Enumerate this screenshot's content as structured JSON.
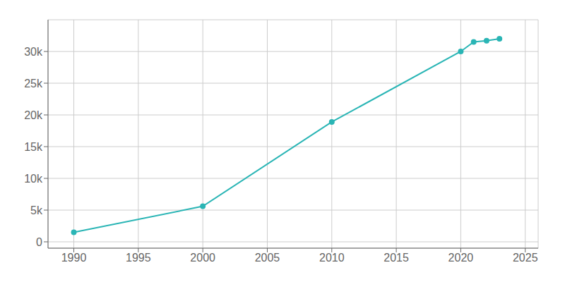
{
  "chart_data": {
    "type": "line",
    "x": [
      1990,
      2000,
      2010,
      2020,
      2021,
      2022,
      2023
    ],
    "values": [
      1500,
      5600,
      18900,
      30000,
      31500,
      31700,
      32000
    ],
    "color": "#2ab5b5",
    "marker": "circle",
    "xlim": [
      1988,
      2026
    ],
    "ylim": [
      -1000,
      35000
    ],
    "xticks": [
      1990,
      1995,
      2000,
      2005,
      2010,
      2015,
      2020,
      2025
    ],
    "yticks": [
      0,
      {
        "value": 5000,
        "label": "5k"
      },
      {
        "value": 10000,
        "label": "10k"
      },
      {
        "value": 15000,
        "label": "15k"
      },
      {
        "value": 20000,
        "label": "20k"
      },
      {
        "value": 25000,
        "label": "25k"
      },
      {
        "value": 30000,
        "label": "30k"
      }
    ],
    "grid": true
  }
}
